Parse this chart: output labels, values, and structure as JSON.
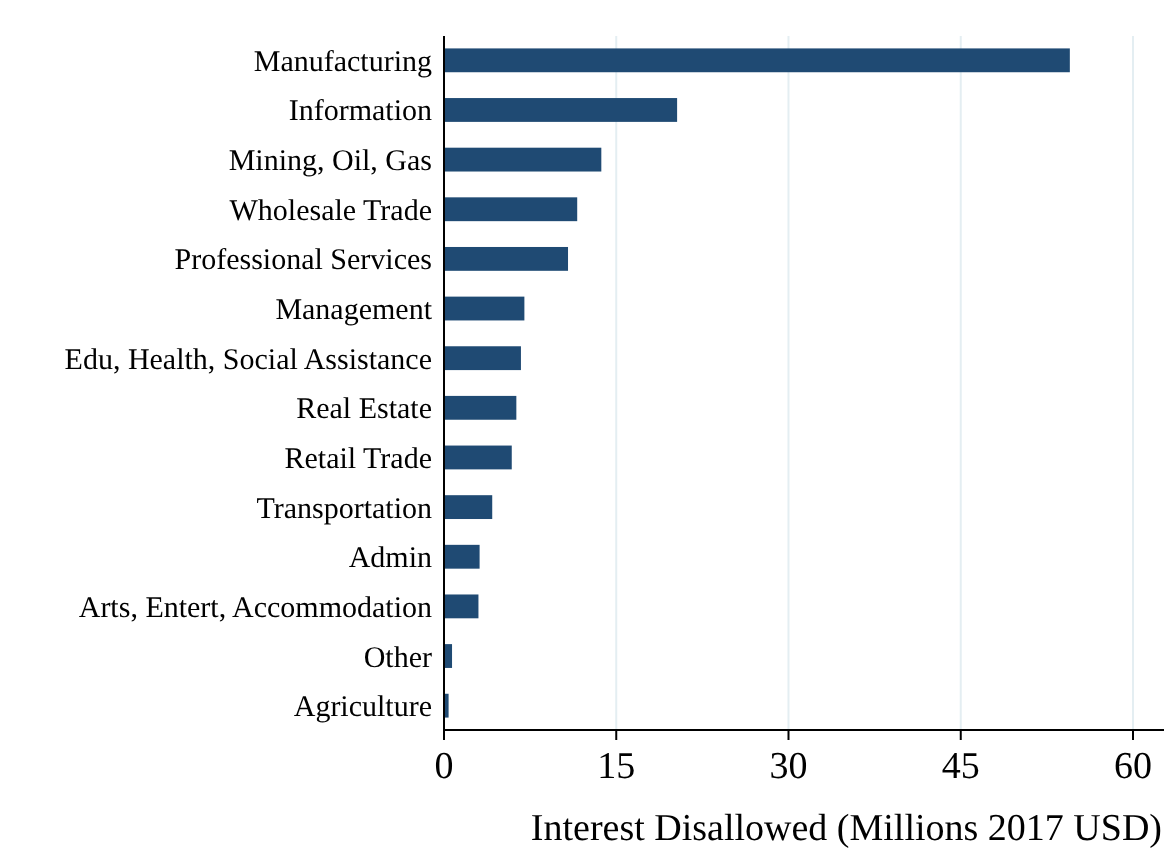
{
  "chart_data": {
    "type": "bar",
    "orientation": "horizontal",
    "xlabel": "Interest Disallowed (Millions 2017 USD)",
    "categories": [
      "Manufacturing",
      "Information",
      "Mining, Oil, Gas",
      "Wholesale Trade",
      "Professional Services",
      "Management",
      "Edu, Health, Social Assistance",
      "Real Estate",
      "Retail Trade",
      "Transportation",
      "Admin",
      "Arts, Entert, Accommodation",
      "Other",
      "Agriculture"
    ],
    "values": [
      54.5,
      20.3,
      13.7,
      11.6,
      10.8,
      7.0,
      6.7,
      6.3,
      5.9,
      4.2,
      3.1,
      3.0,
      0.7,
      0.4
    ],
    "color": "#1f4a73",
    "xlim": [
      0,
      62.7
    ],
    "xticks": [
      0,
      15,
      30,
      45,
      60
    ],
    "grid": "x"
  }
}
